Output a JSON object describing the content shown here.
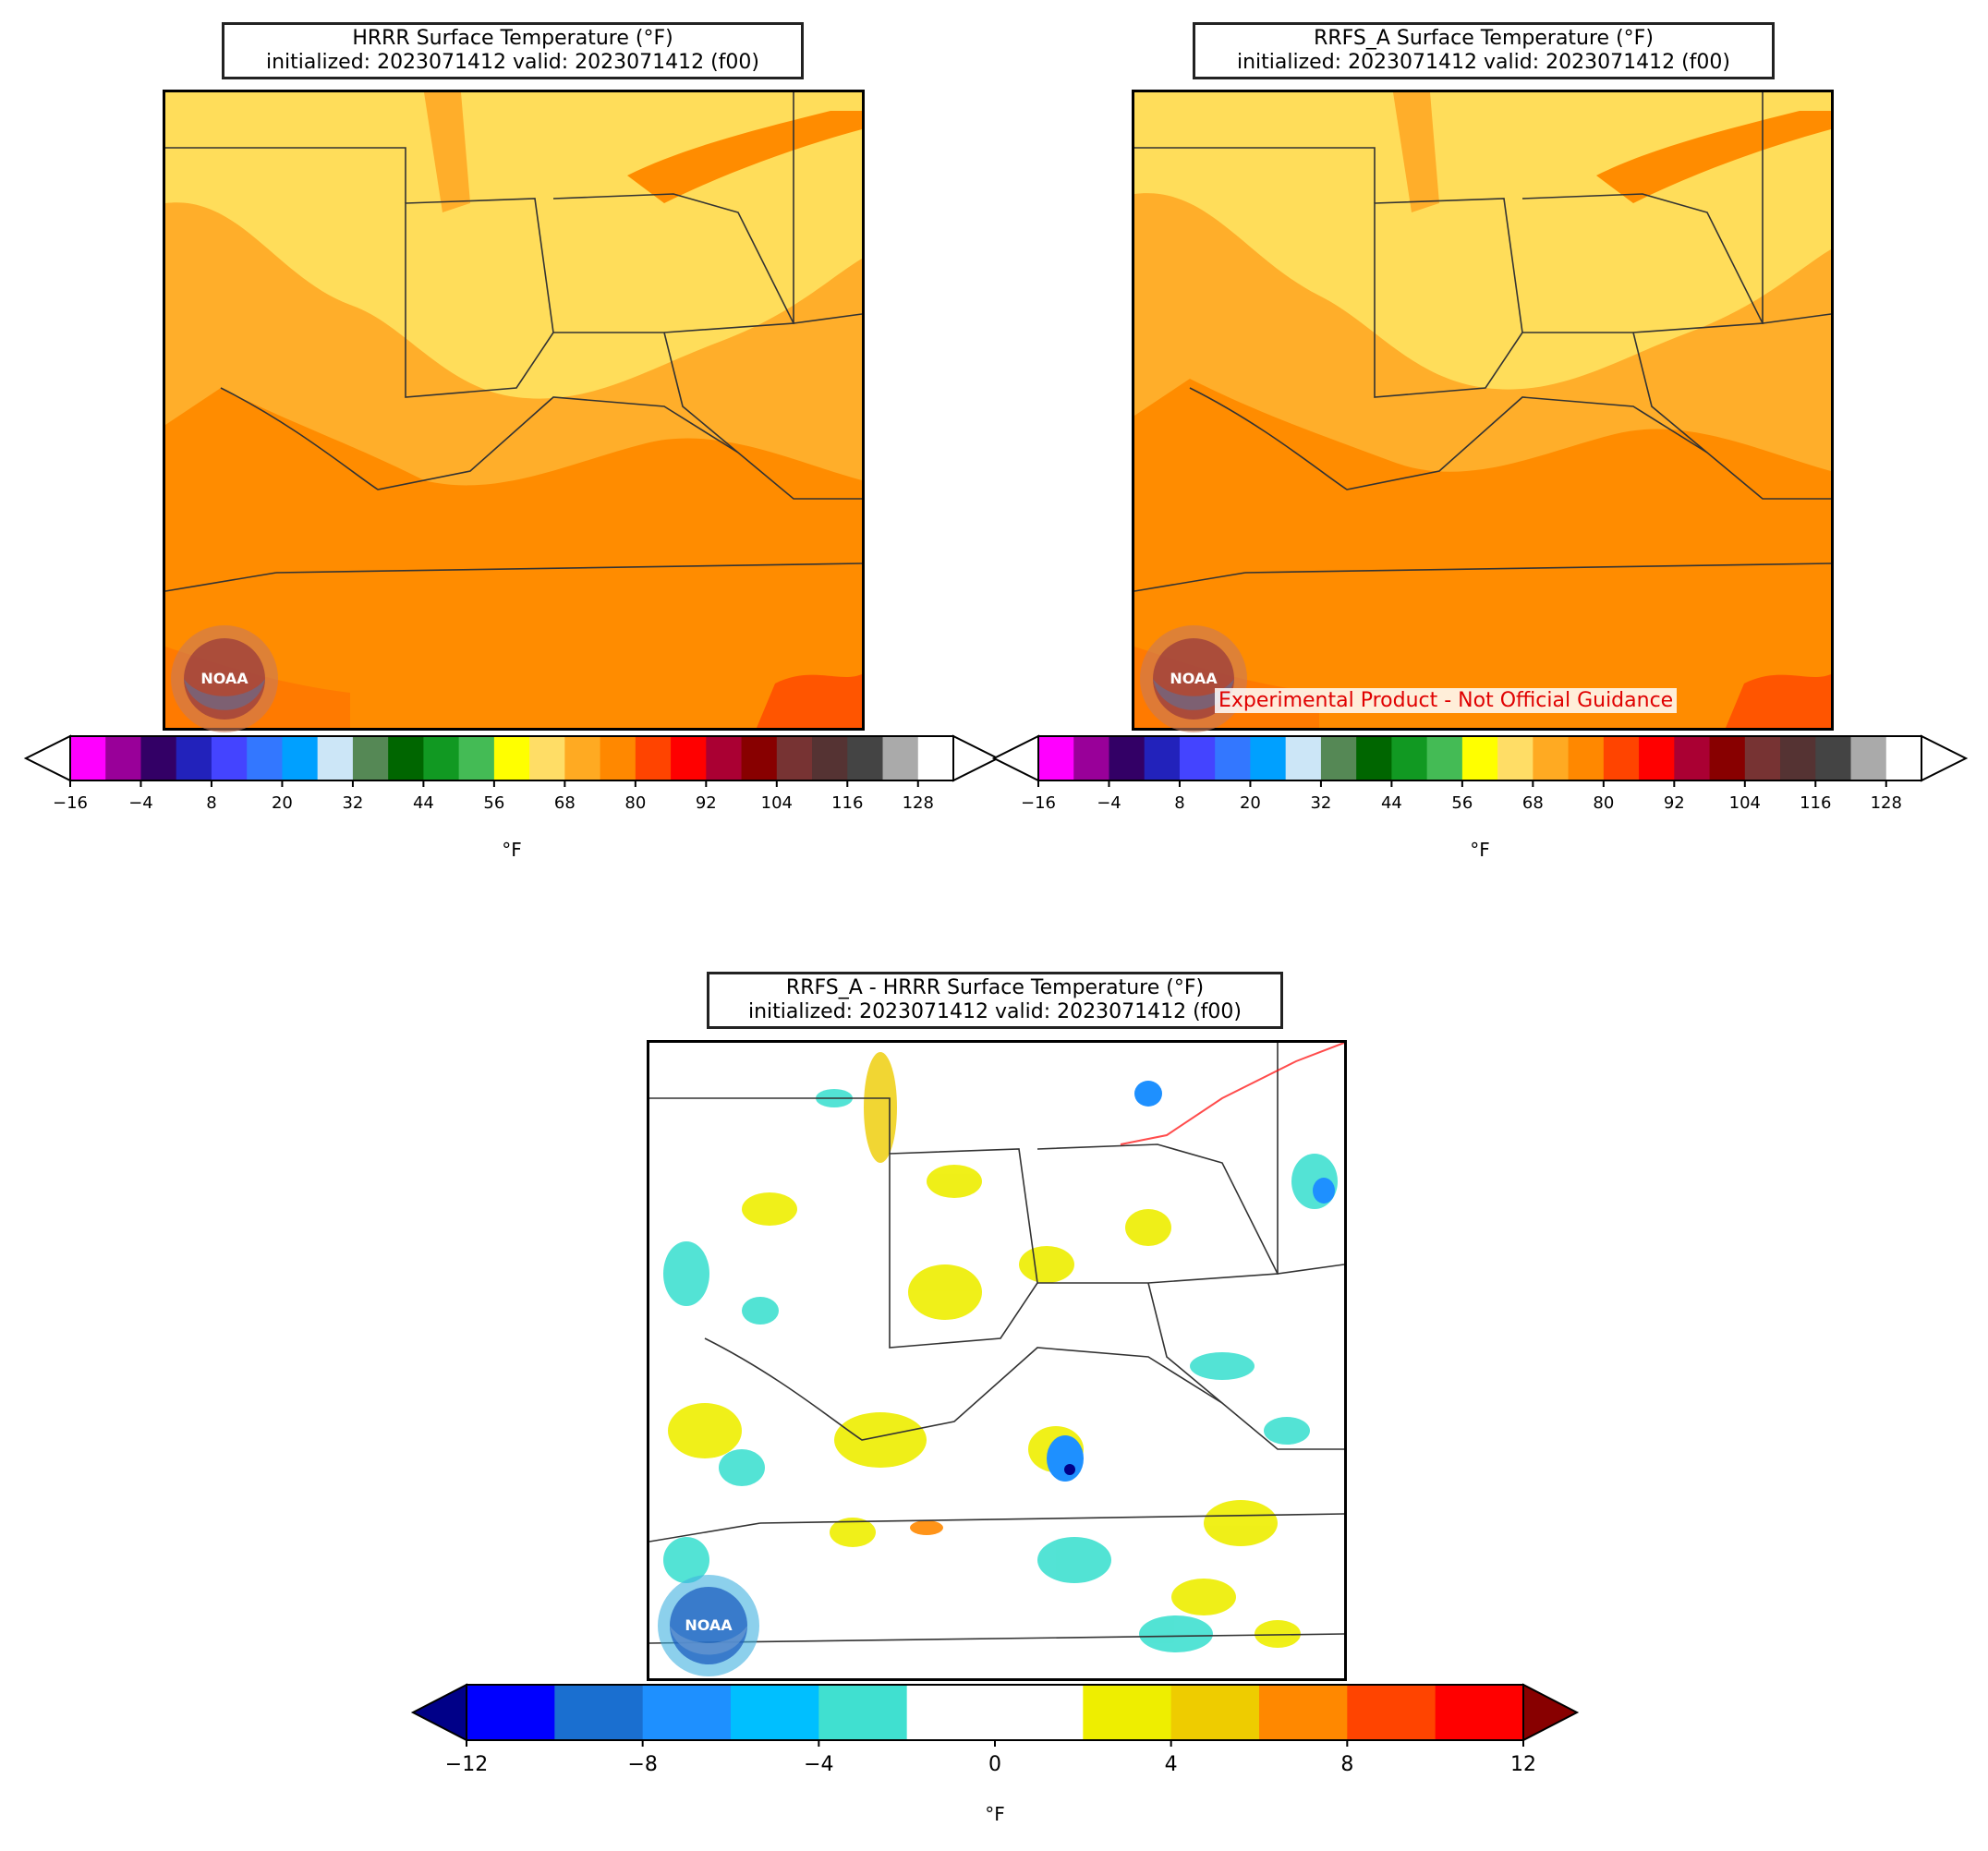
{
  "panels": [
    {
      "title_line1": "HRRR Surface Temperature (°F)",
      "title_line2": "initialized: 2023071412 valid: 2023071412 (f00)"
    },
    {
      "title_line1": "RRFS_A Surface Temperature (°F)",
      "title_line2": "initialized: 2023071412 valid: 2023071412 (f00)"
    },
    {
      "title_line1": "RRFS_A - HRRR Surface Temperature (°F)",
      "title_line2": "initialized: 2023071412 valid: 2023071412 (f00)"
    }
  ],
  "banner": "Experimental Product - Not Official Guidance",
  "logo_text": "NOAA",
  "temp_colorbar": {
    "unit": "°F",
    "ticks": [
      "−16",
      "−4",
      "8",
      "20",
      "32",
      "44",
      "56",
      "68",
      "80",
      "92",
      "104",
      "116",
      "128"
    ],
    "colors": [
      "#ff00ff",
      "#990099",
      "#330066",
      "#2222bb",
      "#4444ff",
      "#3377ff",
      "#00a0ff",
      "#cce6f7",
      "#558855",
      "#006600",
      "#119922",
      "#44bb55",
      "#ffff00",
      "#ffdd66",
      "#ffaa22",
      "#ff8800",
      "#ff4400",
      "#ff0000",
      "#aa0033",
      "#880000",
      "#773333",
      "#553333",
      "#444444",
      "#aaaaaa",
      "#ffffff"
    ],
    "extend_min_color": "#ffffff",
    "extend_max_color": "#ffffff"
  },
  "diff_colorbar": {
    "unit": "°F",
    "ticks": [
      "−12",
      "−8",
      "−4",
      "0",
      "4",
      "8",
      "12"
    ],
    "colors": [
      "#0000ff",
      "#1a6fd0",
      "#1e90ff",
      "#00bfff",
      "#40e0d0",
      "#ffffff",
      "#ffffff",
      "#eeee00",
      "#eecc00",
      "#ff8800",
      "#ff4400",
      "#ff0000"
    ],
    "extend_min_color": "#000088",
    "extend_max_color": "#880000"
  }
}
